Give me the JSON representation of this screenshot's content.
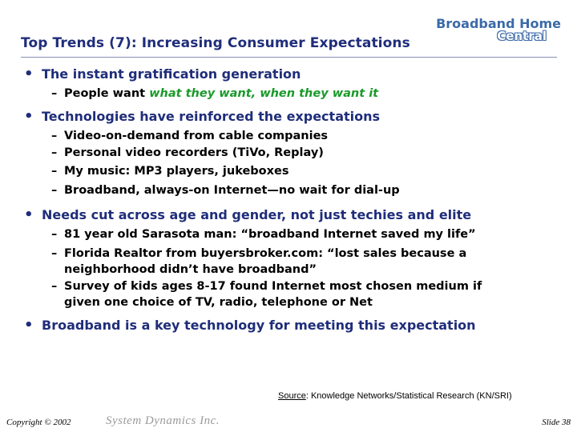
{
  "title": "Top Trends (7): Increasing Consumer Expectations",
  "logo": {
    "line1": "Broadband Home",
    "line2": "Central"
  },
  "bullets": [
    {
      "text": "The instant gratification generation",
      "subs": [
        {
          "prefix": "People want ",
          "emphasis": "what they want, when they want it"
        }
      ]
    },
    {
      "text": "Technologies have reinforced the expectations",
      "subs": [
        {
          "text": "Video-on-demand from cable companies"
        },
        {
          "text": "Personal video recorders (TiVo, Replay)"
        },
        {
          "text": "My music: MP3 players, jukeboxes"
        },
        {
          "text": "Broadband, always-on Internet—no wait for dial-up"
        }
      ]
    },
    {
      "text": "Needs cut across age and gender, not just techies and elite",
      "subs": [
        {
          "text": "81 year old Sarasota man: “broadband Internet saved my life”"
        },
        {
          "line1": "Florida Realtor from buyersbroker.com: “lost sales because a",
          "line2": "neighborhood didn’t have broadband”"
        },
        {
          "line1": "Survey of kids ages 8-17 found Internet most chosen medium if",
          "line2": "given one choice of TV, radio, telephone or Net"
        }
      ]
    },
    {
      "text": "Broadband is a key technology for meeting this expectation",
      "subs": []
    }
  ],
  "source": {
    "label": "Source",
    "text": ": Knowledge Networks/Statistical Research (KN/SRI)"
  },
  "footer": {
    "copyright": "Copyright © 2002",
    "company": "System Dynamics Inc.",
    "slide": "Slide 38"
  },
  "colors": {
    "title": "#1f2d7a",
    "emphasis": "#1a9a2a",
    "logo": "#3b6aa8"
  }
}
